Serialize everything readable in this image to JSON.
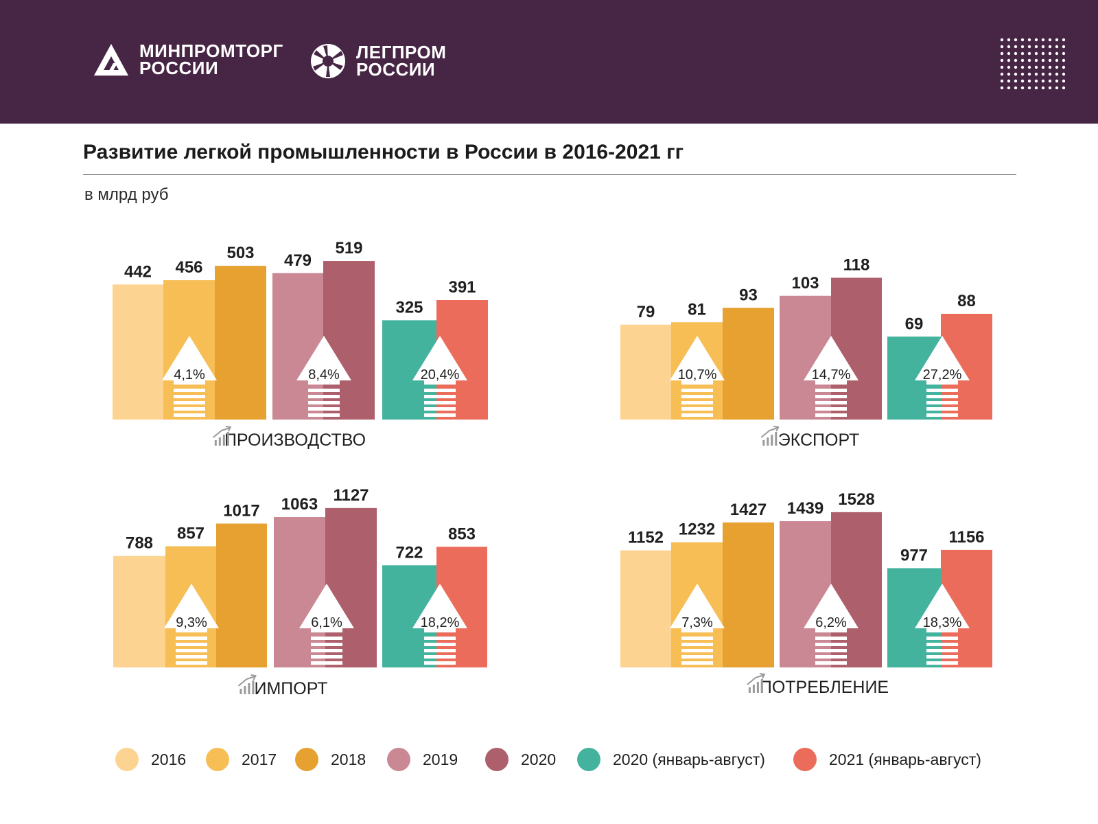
{
  "header": {
    "logo1": {
      "line1": "МИНПРОМТОРГ",
      "line2": "РОССИИ"
    },
    "logo2": {
      "line1": "ЛЕГПРОМ",
      "line2": "РОССИИ"
    }
  },
  "title": "Развитие легкой промышленности в России в 2016-2021 гг",
  "units": "в млрд руб",
  "colors": [
    "#fcd391",
    "#f6be55",
    "#e6a130",
    "#c98894",
    "#ad5f6b",
    "#44b39e",
    "#eb6c5b"
  ],
  "chart_data": [
    {
      "type": "bar",
      "title": "ПРОИЗВОДСТВО",
      "categories": [
        "2016",
        "2017",
        "2018",
        "2019",
        "2020",
        "2020 (январь-август)",
        "2021 (январь-август)"
      ],
      "values": [
        442,
        456,
        503,
        479,
        519,
        325,
        391
      ],
      "growth": [
        "4,1%",
        "8,4%",
        "20,4%"
      ],
      "unit": "млрд руб"
    },
    {
      "type": "bar",
      "title": "ЭКСПОРТ",
      "categories": [
        "2016",
        "2017",
        "2018",
        "2019",
        "2020",
        "2020 (январь-август)",
        "2021 (январь-август)"
      ],
      "values": [
        79,
        81,
        93,
        103,
        118,
        69,
        88
      ],
      "growth": [
        "10,7%",
        "14,7%",
        "27,2%"
      ],
      "unit": "млрд руб"
    },
    {
      "type": "bar",
      "title": "ИМПОРТ",
      "categories": [
        "2016",
        "2017",
        "2018",
        "2019",
        "2020",
        "2020 (январь-август)",
        "2021 (январь-август)"
      ],
      "values": [
        788,
        857,
        1017,
        1063,
        1127,
        722,
        853
      ],
      "growth": [
        "9,3%",
        "6,1%",
        "18,2%"
      ],
      "unit": "млрд руб"
    },
    {
      "type": "bar",
      "title": "ПОТРЕБЛЕНИЕ",
      "categories": [
        "2016",
        "2017",
        "2018",
        "2019",
        "2020",
        "2020 (январь-август)",
        "2021 (январь-август)"
      ],
      "values": [
        1152,
        1232,
        1427,
        1439,
        1528,
        977,
        1156
      ],
      "growth": [
        "7,3%",
        "6,2%",
        "18,3%"
      ],
      "unit": "млрд руб"
    }
  ],
  "legend": [
    "2016",
    "2017",
    "2018",
    "2019",
    "2020",
    "2020 (январь-август)",
    "2021 (январь-август)"
  ]
}
